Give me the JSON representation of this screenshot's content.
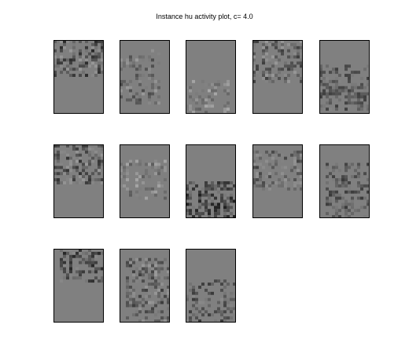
{
  "title": "Instance hu activity plot, c= 4.0",
  "colors": {
    "background": "#ffffff",
    "panel_base": "#808080",
    "panel_border": "#000000"
  },
  "chart_data": {
    "type": "heatmap",
    "title": "Instance hu activity plot, c= 4.0",
    "layout": {
      "rows": 3,
      "cols": 5
    },
    "grid_per_panel": {
      "cols": 16,
      "rows": 24
    },
    "colormap": "gray",
    "base_value": 0.5,
    "panels": [
      {
        "index": 1,
        "active_rows": [
          0,
          11
        ],
        "active_cols": [
          0,
          15
        ],
        "mean": 0.38,
        "spread": 0.22,
        "density": 0.55
      },
      {
        "index": 2,
        "active_rows": [
          3,
          20
        ],
        "active_cols": [
          0,
          12
        ],
        "mean": 0.45,
        "spread": 0.16,
        "density": 0.35
      },
      {
        "index": 3,
        "active_rows": [
          13,
          23
        ],
        "active_cols": [
          0,
          13
        ],
        "mean": 0.52,
        "spread": 0.15,
        "density": 0.45
      },
      {
        "index": 4,
        "active_rows": [
          0,
          13
        ],
        "active_cols": [
          0,
          15
        ],
        "mean": 0.42,
        "spread": 0.18,
        "density": 0.45
      },
      {
        "index": 5,
        "active_rows": [
          8,
          22
        ],
        "active_cols": [
          0,
          15
        ],
        "mean": 0.38,
        "spread": 0.14,
        "density": 0.5
      },
      {
        "index": 6,
        "active_rows": [
          0,
          12
        ],
        "active_cols": [
          0,
          15
        ],
        "mean": 0.4,
        "spread": 0.2,
        "density": 0.55
      },
      {
        "index": 7,
        "active_rows": [
          5,
          17
        ],
        "active_cols": [
          0,
          14
        ],
        "mean": 0.5,
        "spread": 0.15,
        "density": 0.35
      },
      {
        "index": 8,
        "active_rows": [
          12,
          23
        ],
        "active_cols": [
          0,
          15
        ],
        "mean": 0.3,
        "spread": 0.18,
        "density": 0.6
      },
      {
        "index": 9,
        "active_rows": [
          2,
          14
        ],
        "active_cols": [
          0,
          15
        ],
        "mean": 0.42,
        "spread": 0.16,
        "density": 0.45
      },
      {
        "index": 10,
        "active_rows": [
          6,
          23
        ],
        "active_cols": [
          2,
          15
        ],
        "mean": 0.36,
        "spread": 0.14,
        "density": 0.5
      },
      {
        "index": 11,
        "active_rows": [
          0,
          10
        ],
        "active_cols": [
          2,
          15
        ],
        "mean": 0.35,
        "spread": 0.2,
        "density": 0.55
      },
      {
        "index": 12,
        "active_rows": [
          3,
          23
        ],
        "active_cols": [
          2,
          15
        ],
        "mean": 0.42,
        "spread": 0.18,
        "density": 0.45
      },
      {
        "index": 13,
        "active_rows": [
          10,
          23
        ],
        "active_cols": [
          0,
          15
        ],
        "mean": 0.38,
        "spread": 0.16,
        "density": 0.45
      }
    ]
  }
}
